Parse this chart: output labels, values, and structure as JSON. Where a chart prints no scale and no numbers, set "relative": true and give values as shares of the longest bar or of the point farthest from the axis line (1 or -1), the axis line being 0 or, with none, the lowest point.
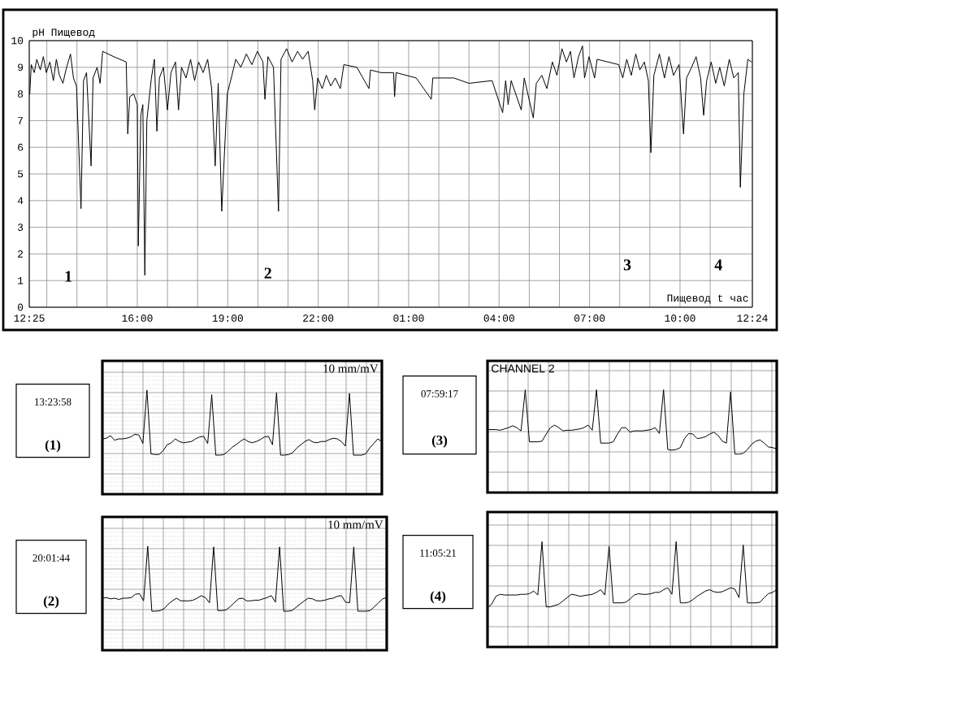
{
  "chart_data": [
    {
      "type": "line",
      "ylabel": "pH Пищевод",
      "xlabel": "Пищевод t час",
      "color": "#000000",
      "xlim": [
        "2000-01-01T12:25",
        "2000-01-02T12:24"
      ],
      "ylim": [
        0,
        10
      ],
      "grid": true,
      "xticks": [
        {
          "value": "2000-01-01T12:25",
          "label": "12:25"
        },
        {
          "value": "2000-01-01T13:00",
          "label": null
        },
        {
          "value": "2000-01-01T14:00",
          "label": null
        },
        {
          "value": "2000-01-01T15:00",
          "label": null
        },
        {
          "value": "2000-01-01T16:00",
          "label": "16:00"
        },
        {
          "value": "2000-01-01T17:00",
          "label": null
        },
        {
          "value": "2000-01-01T18:00",
          "label": null
        },
        {
          "value": "2000-01-01T19:00",
          "label": "19:00"
        },
        {
          "value": "2000-01-01T20:00",
          "label": null
        },
        {
          "value": "2000-01-01T21:00",
          "label": null
        },
        {
          "value": "2000-01-01T22:00",
          "label": "22:00"
        },
        {
          "value": "2000-01-01T23:00",
          "label": null
        },
        {
          "value": "2000-01-02T00:00",
          "label": null
        },
        {
          "value": "2000-01-02T01:00",
          "label": "01:00"
        },
        {
          "value": "2000-01-02T02:00",
          "label": null
        },
        {
          "value": "2000-01-02T03:00",
          "label": null
        },
        {
          "value": "2000-01-02T04:00",
          "label": "04:00"
        },
        {
          "value": "2000-01-02T05:00",
          "label": null
        },
        {
          "value": "2000-01-02T06:00",
          "label": null
        },
        {
          "value": "2000-01-02T07:00",
          "label": "07:00"
        },
        {
          "value": "2000-01-02T08:00",
          "label": null
        },
        {
          "value": "2000-01-02T09:00",
          "label": null
        },
        {
          "value": "2000-01-02T10:00",
          "label": "10:00"
        },
        {
          "value": "2000-01-02T11:00",
          "label": null
        },
        {
          "value": "2000-01-02T12:24",
          "label": "12:24"
        }
      ],
      "yticks": [
        0,
        1,
        2,
        3,
        4,
        5,
        6,
        7,
        8,
        9,
        10
      ],
      "x": [
        "2000-01-01T12:26",
        "2000-01-01T12:29",
        "2000-01-01T12:35",
        "2000-01-01T12:40",
        "2000-01-01T12:47",
        "2000-01-01T12:53",
        "2000-01-01T12:59",
        "2000-01-01T13:06",
        "2000-01-01T13:13",
        "2000-01-01T13:19",
        "2000-01-01T13:25",
        "2000-01-01T13:32",
        "2000-01-01T13:38",
        "2000-01-01T13:47",
        "2000-01-01T13:53",
        "2000-01-01T13:59",
        "2000-01-01T14:08",
        "2000-01-01T14:13",
        "2000-01-01T14:19",
        "2000-01-01T14:28",
        "2000-01-01T14:32",
        "2000-01-01T14:40",
        "2000-01-01T14:46",
        "2000-01-01T14:51",
        "2000-01-01T15:13",
        "2000-01-01T15:38",
        "2000-01-01T15:41",
        "2000-01-01T15:45",
        "2000-01-01T15:53",
        "2000-01-01T16:00",
        "2000-01-01T16:02",
        "2000-01-01T16:07",
        "2000-01-01T16:11",
        "2000-01-01T16:15",
        "2000-01-01T16:19",
        "2000-01-01T16:28",
        "2000-01-01T16:34",
        "2000-01-01T16:39",
        "2000-01-01T16:44",
        "2000-01-01T16:52",
        "2000-01-01T17:00",
        "2000-01-01T17:07",
        "2000-01-01T17:16",
        "2000-01-01T17:22",
        "2000-01-01T17:28",
        "2000-01-01T17:37",
        "2000-01-01T17:46",
        "2000-01-01T17:54",
        "2000-01-01T18:02",
        "2000-01-01T18:11",
        "2000-01-01T18:20",
        "2000-01-01T18:28",
        "2000-01-01T18:35",
        "2000-01-01T18:41",
        "2000-01-01T18:48",
        "2000-01-01T18:53",
        "2000-01-01T18:59",
        "2000-01-01T19:07",
        "2000-01-01T19:16",
        "2000-01-01T19:26",
        "2000-01-01T19:37",
        "2000-01-01T19:48",
        "2000-01-01T19:59",
        "2000-01-01T20:10",
        "2000-01-01T20:14",
        "2000-01-01T20:20",
        "2000-01-01T20:31",
        "2000-01-01T20:41",
        "2000-01-01T20:46",
        "2000-01-01T20:57",
        "2000-01-01T21:08",
        "2000-01-01T21:19",
        "2000-01-01T21:29",
        "2000-01-01T21:40",
        "2000-01-01T21:49",
        "2000-01-01T21:53",
        "2000-01-01T21:59",
        "2000-01-01T22:08",
        "2000-01-01T22:16",
        "2000-01-01T22:25",
        "2000-01-01T22:34",
        "2000-01-01T22:44",
        "2000-01-01T22:51",
        "2000-01-01T23:17",
        "2000-01-01T23:41",
        "2000-01-01T23:44",
        "2000-01-02T00:05",
        "2000-01-02T00:30",
        "2000-01-02T00:32",
        "2000-01-02T00:35",
        "2000-01-02T01:15",
        "2000-01-02T01:45",
        "2000-01-02T01:48",
        "2000-01-02T02:30",
        "2000-01-02T03:00",
        "2000-01-02T03:46",
        "2000-01-02T04:07",
        "2000-01-02T04:13",
        "2000-01-02T04:18",
        "2000-01-02T04:24",
        "2000-01-02T04:44",
        "2000-01-02T04:50",
        "2000-01-02T05:08",
        "2000-01-02T05:14",
        "2000-01-02T05:25",
        "2000-01-02T05:35",
        "2000-01-02T05:46",
        "2000-01-02T05:55",
        "2000-01-02T06:05",
        "2000-01-02T06:14",
        "2000-01-02T06:22",
        "2000-01-02T06:29",
        "2000-01-02T06:38",
        "2000-01-02T06:46",
        "2000-01-02T06:50",
        "2000-01-02T06:59",
        "2000-01-02T07:10",
        "2000-01-02T07:15",
        "2000-01-02T07:58",
        "2000-01-02T08:06",
        "2000-01-02T08:14",
        "2000-01-02T08:23",
        "2000-01-02T08:32",
        "2000-01-02T08:40",
        "2000-01-02T08:49",
        "2000-01-02T08:57",
        "2000-01-02T09:02",
        "2000-01-02T09:08",
        "2000-01-02T09:19",
        "2000-01-02T09:29",
        "2000-01-02T09:38",
        "2000-01-02T09:47",
        "2000-01-02T09:58",
        "2000-01-02T10:07",
        "2000-01-02T10:13",
        "2000-01-02T10:23",
        "2000-01-02T10:32",
        "2000-01-02T10:41",
        "2000-01-02T10:47",
        "2000-01-02T10:53",
        "2000-01-02T11:02",
        "2000-01-02T11:11",
        "2000-01-02T11:19",
        "2000-01-02T11:28",
        "2000-01-02T11:38",
        "2000-01-02T11:47",
        "2000-01-02T11:56",
        "2000-01-02T12:00",
        "2000-01-02T12:07",
        "2000-01-02T12:15",
        "2000-01-02T12:22"
      ],
      "values": [
        8.0,
        9.1,
        8.8,
        9.3,
        8.9,
        9.4,
        8.8,
        9.2,
        8.5,
        9.3,
        8.7,
        8.4,
        8.9,
        9.5,
        8.6,
        8.3,
        3.7,
        8.5,
        8.8,
        5.3,
        8.6,
        9.0,
        8.4,
        9.6,
        9.4,
        9.2,
        6.5,
        7.9,
        8.0,
        7.6,
        2.3,
        7.2,
        7.6,
        1.2,
        7.0,
        8.6,
        9.3,
        6.6,
        8.6,
        9.0,
        7.4,
        8.8,
        9.2,
        7.4,
        9.0,
        8.6,
        9.3,
        8.5,
        9.2,
        8.8,
        9.3,
        8.2,
        5.3,
        8.4,
        3.6,
        5.6,
        8.0,
        8.6,
        9.3,
        9.0,
        9.5,
        9.1,
        9.6,
        9.2,
        7.8,
        9.4,
        9.0,
        3.6,
        9.3,
        9.7,
        9.2,
        9.6,
        9.3,
        9.6,
        8.5,
        7.4,
        8.6,
        8.2,
        8.7,
        8.3,
        8.6,
        8.2,
        9.1,
        9.0,
        8.2,
        8.9,
        8.8,
        8.8,
        7.9,
        8.8,
        8.6,
        7.8,
        8.6,
        8.6,
        8.4,
        8.5,
        7.3,
        8.5,
        7.6,
        8.5,
        7.4,
        8.6,
        7.1,
        8.4,
        8.7,
        8.2,
        9.2,
        8.7,
        9.7,
        9.2,
        9.6,
        8.6,
        9.4,
        9.8,
        8.6,
        9.4,
        8.6,
        9.3,
        9.1,
        8.6,
        9.3,
        8.7,
        9.5,
        8.9,
        9.2,
        8.5,
        5.8,
        8.7,
        9.5,
        8.6,
        9.4,
        8.7,
        9.1,
        6.5,
        8.6,
        9.0,
        9.4,
        8.6,
        7.2,
        8.5,
        9.2,
        8.4,
        9.0,
        8.3,
        9.3,
        8.6,
        8.8,
        4.5,
        8.0,
        9.3,
        9.2
      ],
      "annotations": [
        "1",
        "2",
        "3",
        "4"
      ]
    },
    {
      "type": "line",
      "title": "13:23:58",
      "subtitle": "(1)",
      "annotations": [
        "10 mm/mV"
      ],
      "relative": true,
      "grid": true,
      "color": "#000000",
      "categories": [
        null,
        null,
        null,
        null,
        null,
        null,
        null,
        null,
        null,
        null,
        null,
        null,
        null,
        null,
        null,
        null,
        null,
        null,
        null,
        null,
        null,
        null,
        null,
        null,
        null,
        null,
        null,
        null,
        null,
        null,
        null,
        null,
        null,
        null,
        null,
        null,
        null,
        null,
        null,
        null,
        null,
        null,
        null,
        null,
        null,
        null,
        null,
        null,
        null,
        null,
        null,
        null,
        null,
        null,
        null,
        null,
        null,
        null,
        null,
        null,
        null,
        null,
        null,
        null,
        null,
        null,
        null,
        null,
        null,
        null
      ],
      "values": [
        0.25,
        0.26,
        0.3,
        0.23,
        0.25,
        0.25,
        0.26,
        0.28,
        0.32,
        0.31,
        0.18,
        1,
        0.02,
        0.01,
        0.01,
        0.07,
        0.16,
        0.19,
        0.25,
        0.21,
        0.19,
        0.2,
        0.21,
        0.25,
        0.28,
        0.29,
        0.18,
        0.93,
        0,
        0,
        0.01,
        0.06,
        0.12,
        0.16,
        0.21,
        0.25,
        0.21,
        0.19,
        0.21,
        0.24,
        0.28,
        0.29,
        0.16,
        0.96,
        0,
        0,
        0.01,
        0.04,
        0.11,
        0.16,
        0.21,
        0.24,
        0.2,
        0.19,
        0.21,
        0.21,
        0.24,
        0.26,
        0.25,
        0.21,
        0.14,
        0.95,
        0,
        0,
        0,
        0.02,
        0.11,
        0.18,
        0.25,
        0.21
      ]
    },
    {
      "type": "line",
      "title": "07:59:17",
      "subtitle": "(3)",
      "annotations": [
        "CHANNEL 2"
      ],
      "relative": true,
      "grid": true,
      "color": "#000000",
      "categories": [
        null,
        null,
        null,
        null,
        null,
        null,
        null,
        null,
        null,
        null,
        null,
        null,
        null,
        null,
        null,
        null,
        null,
        null,
        null,
        null,
        null,
        null,
        null,
        null,
        null,
        null,
        null,
        null,
        null,
        null,
        null,
        null,
        null,
        null,
        null,
        null,
        null,
        null,
        null,
        null,
        null,
        null,
        null,
        null,
        null,
        null,
        null,
        null,
        null,
        null,
        null,
        null,
        null,
        null,
        null,
        null,
        null,
        null,
        null,
        null,
        null,
        null,
        null,
        null,
        null,
        null,
        null,
        null,
        null,
        null
      ],
      "values": [
        0.38,
        0.38,
        0.38,
        0.37,
        0.39,
        0.41,
        0.44,
        0.41,
        0.36,
        1,
        0.19,
        0.19,
        0.19,
        0.2,
        0.31,
        0.41,
        0.45,
        0.41,
        0.36,
        0.37,
        0.37,
        0.38,
        0.39,
        0.41,
        0.45,
        0.37,
        1,
        0.17,
        0.17,
        0.17,
        0.19,
        0.31,
        0.41,
        0.41,
        0.34,
        0.36,
        0.36,
        0.36,
        0.37,
        0.38,
        0.41,
        0.32,
        1,
        0.07,
        0.06,
        0.07,
        0.1,
        0.24,
        0.32,
        0.31,
        0.24,
        0.25,
        0.27,
        0.31,
        0.34,
        0.29,
        0.2,
        0.17,
        0.97,
        0,
        0,
        0.01,
        0.07,
        0.15,
        0.2,
        0.22,
        0.17,
        0.11,
        0.1,
        0.08
      ]
    },
    {
      "type": "line",
      "title": "20:01:44",
      "subtitle": "(2)",
      "annotations": [
        "10 mm/mV"
      ],
      "relative": true,
      "grid": true,
      "color": "#000000",
      "categories": [
        null,
        null,
        null,
        null,
        null,
        null,
        null,
        null,
        null,
        null,
        null,
        null,
        null,
        null,
        null,
        null,
        null,
        null,
        null,
        null,
        null,
        null,
        null,
        null,
        null,
        null,
        null,
        null,
        null,
        null,
        null,
        null,
        null,
        null,
        null,
        null,
        null,
        null,
        null,
        null,
        null,
        null,
        null,
        null,
        null,
        null,
        null,
        null,
        null,
        null,
        null,
        null,
        null,
        null,
        null,
        null,
        null,
        null,
        null,
        null,
        null,
        null,
        null,
        null,
        null,
        null,
        null,
        null,
        null,
        null
      ],
      "values": [
        0.2,
        0.21,
        0.19,
        0.2,
        0.18,
        0.2,
        0.2,
        0.21,
        0.26,
        0.27,
        0.16,
        1,
        0,
        0,
        0.01,
        0.04,
        0.11,
        0.16,
        0.2,
        0.16,
        0.16,
        0.16,
        0.17,
        0.2,
        0.24,
        0.21,
        0.13,
        0.99,
        0.01,
        0.01,
        0.02,
        0.07,
        0.13,
        0.19,
        0.2,
        0.16,
        0.16,
        0.17,
        0.17,
        0.19,
        0.21,
        0.24,
        0.14,
        0.99,
        0,
        0,
        0.01,
        0.06,
        0.11,
        0.16,
        0.2,
        0.19,
        0.16,
        0.16,
        0.17,
        0.19,
        0.2,
        0.23,
        0.24,
        0.14,
        0.13,
        0.99,
        0,
        0,
        0,
        0.01,
        0.07,
        0.13,
        0.19,
        0.21
      ]
    },
    {
      "type": "line",
      "title": "11:05:21",
      "subtitle": "(4)",
      "relative": true,
      "grid": true,
      "color": "#000000",
      "categories": [
        null,
        null,
        null,
        null,
        null,
        null,
        null,
        null,
        null,
        null,
        null,
        null,
        null,
        null,
        null,
        null,
        null,
        null,
        null,
        null,
        null,
        null,
        null,
        null,
        null,
        null,
        null,
        null,
        null,
        null,
        null,
        null,
        null,
        null,
        null,
        null,
        null,
        null,
        null,
        null,
        null,
        null,
        null,
        null,
        null,
        null,
        null,
        null,
        null,
        null,
        null,
        null,
        null,
        null,
        null,
        null,
        null,
        null,
        null,
        null,
        null,
        null,
        null,
        null,
        null,
        null,
        null,
        null,
        null,
        null
      ],
      "values": [
        0,
        0.05,
        0.17,
        0.2,
        0.19,
        0.19,
        0.19,
        0.19,
        0.2,
        0.2,
        0.21,
        0.25,
        0.19,
        1,
        0.01,
        0.01,
        0.03,
        0.05,
        0.1,
        0.15,
        0.2,
        0.19,
        0.17,
        0.18,
        0.19,
        0.2,
        0.23,
        0.27,
        0.19,
        0.93,
        0.07,
        0.07,
        0.07,
        0.08,
        0.13,
        0.19,
        0.21,
        0.2,
        0.2,
        0.21,
        0.23,
        0.23,
        0.27,
        0.3,
        0.2,
        1,
        0.07,
        0.07,
        0.08,
        0.12,
        0.17,
        0.21,
        0.25,
        0.27,
        0.24,
        0.23,
        0.24,
        0.27,
        0.3,
        0.28,
        0.15,
        0.95,
        0.07,
        0.07,
        0.07,
        0.08,
        0.15,
        0.21,
        0.23,
        0.27
      ]
    }
  ]
}
